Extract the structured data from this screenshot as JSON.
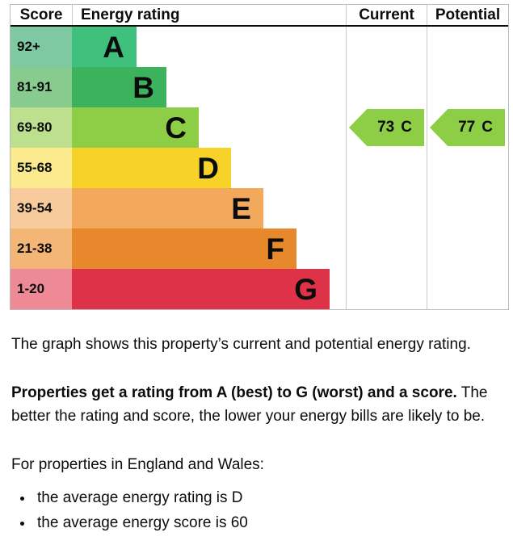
{
  "chart_data": {
    "type": "bar",
    "title": "Energy rating",
    "columns": {
      "score": "Score",
      "rating": "Energy rating",
      "current": "Current",
      "potential": "Potential"
    },
    "bands": [
      {
        "letter": "A",
        "score_range": "92+",
        "bar_color": "#3fc07c",
        "score_color": "#7fc9a2",
        "bar_width_pct": 23.6
      },
      {
        "letter": "B",
        "score_range": "81-91",
        "bar_color": "#3bb25b",
        "score_color": "#87cb8e",
        "bar_width_pct": 34.5
      },
      {
        "letter": "C",
        "score_range": "69-80",
        "bar_color": "#8dce46",
        "score_color": "#bce08e",
        "bar_width_pct": 46.3
      },
      {
        "letter": "D",
        "score_range": "55-68",
        "bar_color": "#f7d229",
        "score_color": "#fbe98e",
        "bar_width_pct": 58.1
      },
      {
        "letter": "E",
        "score_range": "39-54",
        "bar_color": "#f3a95c",
        "score_color": "#f8cb9c",
        "bar_width_pct": 69.9
      },
      {
        "letter": "F",
        "score_range": "21-38",
        "bar_color": "#e8882c",
        "score_color": "#f3b676",
        "bar_width_pct": 82.0
      },
      {
        "letter": "G",
        "score_range": "1-20",
        "bar_color": "#dd3247",
        "score_color": "#ee8a96",
        "bar_width_pct": 94.1
      }
    ],
    "current": {
      "value": 73,
      "letter": "C",
      "band": "C",
      "arrow_color": "#8dce46"
    },
    "potential": {
      "value": 77,
      "letter": "C",
      "band": "C",
      "arrow_color": "#8dce46"
    },
    "legend_position": "none",
    "grid": false
  },
  "description": {
    "intro": "The graph shows this property’s current and potential energy rating.",
    "rating_bold": "Properties get a rating from A (best) to G (worst) and a score.",
    "rating_rest": " The better the rating and score, the lower your energy bills are likely to be.",
    "region_line": "For properties in England and Wales:",
    "bullets": [
      "the average energy rating is D",
      "the average energy score is 60"
    ]
  }
}
